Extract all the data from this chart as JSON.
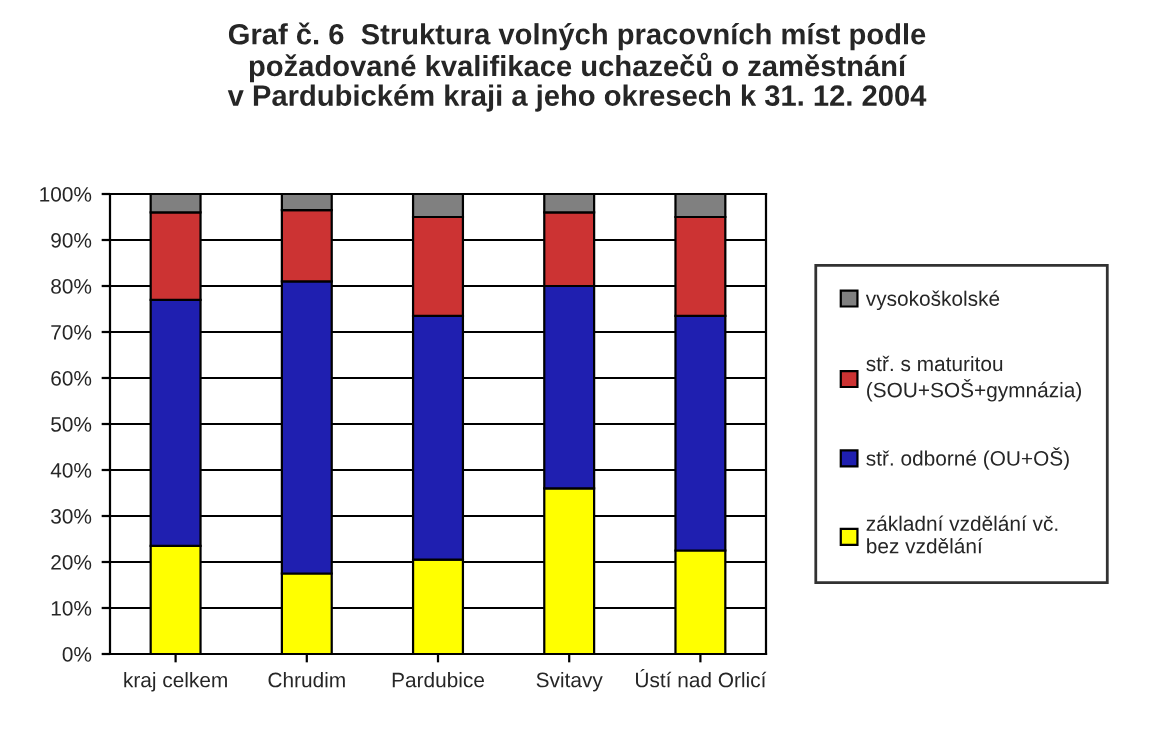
{
  "chart_data": {
    "type": "bar",
    "stacked": true,
    "title": "Graf č. 6  Struktura volných pracovních míst podle\npožadované kvalifikace uchazečů o zaměstnání\nv Pardubickém kraji a jeho okresech k 31. 12. 2004",
    "categories": [
      "kraj celkem",
      "Chrudim",
      "Pardubice",
      "Svitavy",
      "Ústí nad Orlicí"
    ],
    "series": [
      {
        "name": "základní vzdělání vč.\nbez vzdělání",
        "color": "#ffff00",
        "values": [
          23.5,
          17.5,
          20.5,
          36,
          22.5
        ]
      },
      {
        "name": "stř. odborné (OU+OŠ)",
        "color": "#1f1fb0",
        "values": [
          53.5,
          63.5,
          53,
          44,
          51
        ]
      },
      {
        "name": "stř. s maturitou\n(SOU+SOŠ+gymnázia)",
        "color": "#cc3333",
        "values": [
          19,
          15.5,
          21.5,
          16,
          21.5
        ]
      },
      {
        "name": "vysokoškolské",
        "color": "#808080",
        "values": [
          4,
          3.5,
          5,
          4,
          5
        ]
      }
    ],
    "ylim": [
      0,
      100
    ],
    "yticks": [
      {
        "value": 0,
        "label": "0%"
      },
      {
        "value": 10,
        "label": "10%"
      },
      {
        "value": 20,
        "label": "20%"
      },
      {
        "value": 30,
        "label": "30%"
      },
      {
        "value": 40,
        "label": "40%"
      },
      {
        "value": 50,
        "label": "50%"
      },
      {
        "value": 60,
        "label": "60%"
      },
      {
        "value": 70,
        "label": "70%"
      },
      {
        "value": 80,
        "label": "80%"
      },
      {
        "value": 90,
        "label": "90%"
      },
      {
        "value": 100,
        "label": "100%"
      }
    ],
    "grid": "y",
    "legend": "right"
  }
}
